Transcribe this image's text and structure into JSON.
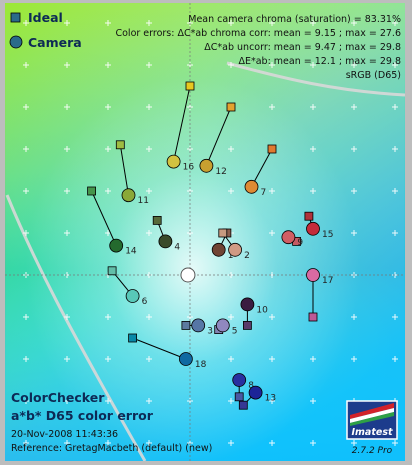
{
  "legend": {
    "ideal_label": "Ideal",
    "camera_label": "Camera",
    "ideal_color": "#2a6b8a",
    "camera_color": "#2a6b8a"
  },
  "stats": {
    "line1": "Mean camera chroma (saturation) = 83.31%",
    "line2": "Color errors:  ΔC*ab chroma corr:  mean = 9.15 ;  max = 27.6",
    "line3": "ΔC*ab uncorr:  mean = 9.47 ;  max = 29.8",
    "line4": "ΔE*ab:  mean = 12.1 ;  max = 29.8",
    "line5": "sRGB (D65)"
  },
  "footer": {
    "title1": "ColorChecker",
    "title2": "a*b* D65 color error",
    "timestamp": "20-Nov-2008 11:43:36",
    "reference": "Reference: GretagMacbeth (default) (new)",
    "version": "2.7.2  Pro"
  },
  "logo": {
    "text": "Imatest"
  },
  "chart_data": {
    "type": "scatter",
    "title": "ColorChecker a*b* D65 color error",
    "xlabel": "",
    "ylabel": "",
    "xlim": [
      -45,
      45
    ],
    "ylim": [
      -45,
      50
    ],
    "grid": true,
    "legend_position": "top-left",
    "series": [
      {
        "name": "Ideal",
        "marker": "square",
        "points": [
          {
            "id": 1,
            "a": 9,
            "b": 10,
            "color": "#8c5f4f"
          },
          {
            "id": 2,
            "a": 8,
            "b": 10,
            "color": "#c89a80"
          },
          {
            "id": 3,
            "a": -1,
            "b": -12,
            "color": "#5c7aa0"
          },
          {
            "id": 4,
            "a": -8,
            "b": 13,
            "color": "#57693a"
          },
          {
            "id": 5,
            "a": 7,
            "b": -13,
            "color": "#8282b2"
          },
          {
            "id": 6,
            "a": -19,
            "b": 1,
            "color": "#62bea8"
          },
          {
            "id": 7,
            "a": 20,
            "b": 30,
            "color": "#e07a30"
          },
          {
            "id": 8,
            "a": 12,
            "b": -29,
            "color": "#4858a4"
          },
          {
            "id": 9,
            "a": 26,
            "b": 8,
            "color": "#c45a62"
          },
          {
            "id": 10,
            "a": 14,
            "b": -12,
            "color": "#5a3a6a"
          },
          {
            "id": 11,
            "a": -17,
            "b": 31,
            "color": "#9ebc42"
          },
          {
            "id": 12,
            "a": 10,
            "b": 40,
            "color": "#e4a22e"
          },
          {
            "id": 13,
            "a": 13,
            "b": -31,
            "color": "#363894"
          },
          {
            "id": 14,
            "a": -24,
            "b": 20,
            "color": "#46944a"
          },
          {
            "id": 15,
            "a": 29,
            "b": 14,
            "color": "#b0323a"
          },
          {
            "id": 16,
            "a": 0,
            "b": 45,
            "color": "#e8c820"
          },
          {
            "id": 17,
            "a": 30,
            "b": -10,
            "color": "#bc5896"
          },
          {
            "id": 18,
            "a": -14,
            "b": -15,
            "color": "#0888a8"
          }
        ]
      },
      {
        "name": "Camera",
        "marker": "circle",
        "points": [
          {
            "id": 1,
            "a": 7,
            "b": 6,
            "color": "#704434"
          },
          {
            "id": 2,
            "a": 11,
            "b": 6,
            "color": "#d09a84"
          },
          {
            "id": 3,
            "a": 2,
            "b": -12,
            "color": "#5676a6"
          },
          {
            "id": 4,
            "a": -6,
            "b": 8,
            "color": "#3a4a2a"
          },
          {
            "id": 5,
            "a": 8,
            "b": -12,
            "color": "#9088c0"
          },
          {
            "id": 6,
            "a": -14,
            "b": -5,
            "color": "#58c8b8"
          },
          {
            "id": 7,
            "a": 15,
            "b": 21,
            "color": "#de8a34"
          },
          {
            "id": 8,
            "a": 12,
            "b": -25,
            "color": "#2830a0"
          },
          {
            "id": 9,
            "a": 24,
            "b": 9,
            "color": "#d05e64"
          },
          {
            "id": 10,
            "a": 14,
            "b": -7,
            "color": "#3a1c40"
          },
          {
            "id": 11,
            "a": -15,
            "b": 19,
            "color": "#8aa838"
          },
          {
            "id": 12,
            "a": 4,
            "b": 26,
            "color": "#c8a030"
          },
          {
            "id": 13,
            "a": 16,
            "b": -28,
            "color": "#1c2498"
          },
          {
            "id": 14,
            "a": -18,
            "b": 7,
            "color": "#246a2e"
          },
          {
            "id": 15,
            "a": 30,
            "b": 11,
            "color": "#c42c3a"
          },
          {
            "id": 16,
            "a": -4,
            "b": 27,
            "color": "#d2c240"
          },
          {
            "id": 17,
            "a": 30,
            "b": 0,
            "color": "#d86aa2"
          },
          {
            "id": 18,
            "a": -1,
            "b": -20,
            "color": "#106aa2"
          }
        ]
      }
    ],
    "neutral_point": {
      "a": -0.5,
      "b": 0
    }
  }
}
